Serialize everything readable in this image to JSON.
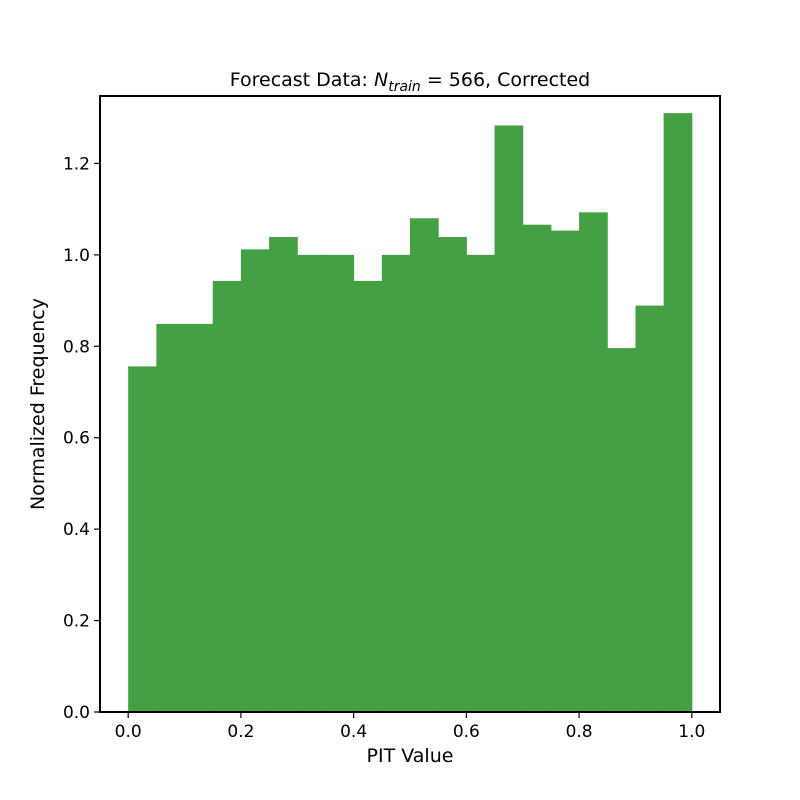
{
  "chart_data": {
    "type": "bar",
    "title": {
      "prefix": "Forecast Data: ",
      "symbol": "N",
      "subscript": "train",
      "suffix": " =  566, Corrected"
    },
    "xlabel": "PIT Value",
    "ylabel": "Normalized Frequency",
    "xlim": [
      -0.05,
      1.05
    ],
    "ylim": [
      0,
      1.3475
    ],
    "xticks": [
      0.0,
      0.2,
      0.4,
      0.6,
      0.8,
      1.0
    ],
    "xtick_labels": [
      "0.0",
      "0.2",
      "0.4",
      "0.6",
      "0.8",
      "1.0"
    ],
    "yticks": [
      0.0,
      0.2,
      0.4,
      0.6,
      0.8,
      1.0,
      1.2
    ],
    "ytick_labels": [
      "0.0",
      "0.2",
      "0.4",
      "0.6",
      "0.8",
      "1.0",
      "1.2"
    ],
    "bin_edges": [
      0.0,
      0.05,
      0.1,
      0.15,
      0.2,
      0.25,
      0.3,
      0.35,
      0.4,
      0.45,
      0.5,
      0.55,
      0.6,
      0.65,
      0.7,
      0.75,
      0.8,
      0.85,
      0.9,
      0.95,
      1.0
    ],
    "values": [
      0.756,
      0.849,
      0.849,
      0.943,
      1.012,
      1.039,
      1.0,
      1.0,
      0.943,
      1.0,
      1.08,
      1.039,
      1.0,
      1.283,
      1.066,
      1.053,
      1.093,
      0.796,
      0.889,
      1.31
    ],
    "bar_color": "#43a043",
    "grid": false,
    "legend": "none"
  }
}
